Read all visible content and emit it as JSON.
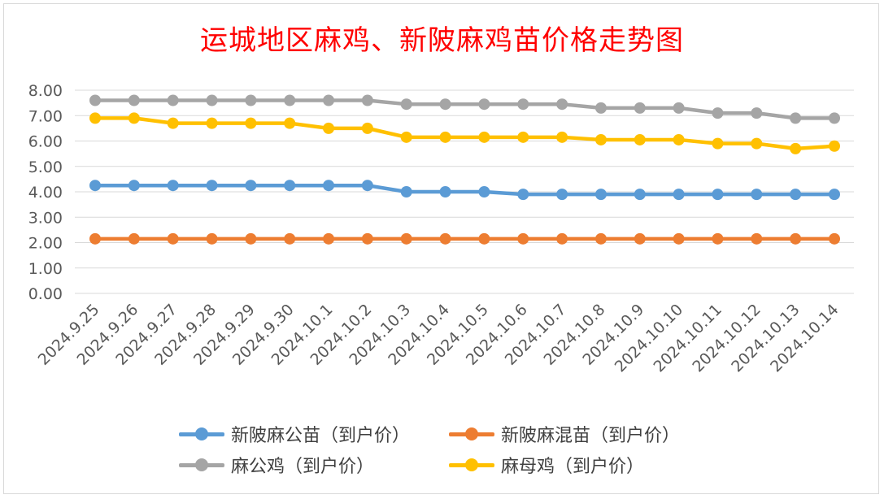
{
  "chart_data": {
    "type": "line",
    "title": "运城地区麻鸡、新陂麻鸡苗价格走势图",
    "categories": [
      "2024.9.25",
      "2024.9.26",
      "2024.9.27",
      "2024.9.28",
      "2024.9.29",
      "2024.9.30",
      "2024.10.1",
      "2024.10.2",
      "2024.10.3",
      "2024.10.4",
      "2024.10.5",
      "2024.10.6",
      "2024.10.7",
      "2024.10.8",
      "2024.10.9",
      "2024.10.10",
      "2024.10.11",
      "2024.10.12",
      "2024.10.13",
      "2024.10.14"
    ],
    "yticks": [
      "0.00",
      "1.00",
      "2.00",
      "3.00",
      "4.00",
      "5.00",
      "6.00",
      "7.00",
      "8.00"
    ],
    "ylim": [
      0,
      8
    ],
    "grid": true,
    "legend_position": "bottom",
    "series": [
      {
        "name": "新陂麻公苗（到户价）",
        "color": "#5b9bd5",
        "values": [
          4.25,
          4.25,
          4.25,
          4.25,
          4.25,
          4.25,
          4.25,
          4.25,
          4.0,
          4.0,
          4.0,
          3.9,
          3.9,
          3.9,
          3.9,
          3.9,
          3.9,
          3.9,
          3.9,
          3.9
        ]
      },
      {
        "name": "新陂麻混苗（到户价）",
        "color": "#ed7d31",
        "values": [
          2.15,
          2.15,
          2.15,
          2.15,
          2.15,
          2.15,
          2.15,
          2.15,
          2.15,
          2.15,
          2.15,
          2.15,
          2.15,
          2.15,
          2.15,
          2.15,
          2.15,
          2.15,
          2.15,
          2.15
        ]
      },
      {
        "name": "麻公鸡（到户价）",
        "color": "#a5a5a5",
        "values": [
          7.6,
          7.6,
          7.6,
          7.6,
          7.6,
          7.6,
          7.6,
          7.6,
          7.45,
          7.45,
          7.45,
          7.45,
          7.45,
          7.3,
          7.3,
          7.3,
          7.1,
          7.1,
          6.9,
          6.9
        ]
      },
      {
        "name": "麻母鸡（到户价）",
        "color": "#ffc000",
        "values": [
          6.9,
          6.9,
          6.7,
          6.7,
          6.7,
          6.7,
          6.5,
          6.5,
          6.15,
          6.15,
          6.15,
          6.15,
          6.15,
          6.05,
          6.05,
          6.05,
          5.9,
          5.9,
          5.7,
          5.8
        ]
      }
    ]
  }
}
